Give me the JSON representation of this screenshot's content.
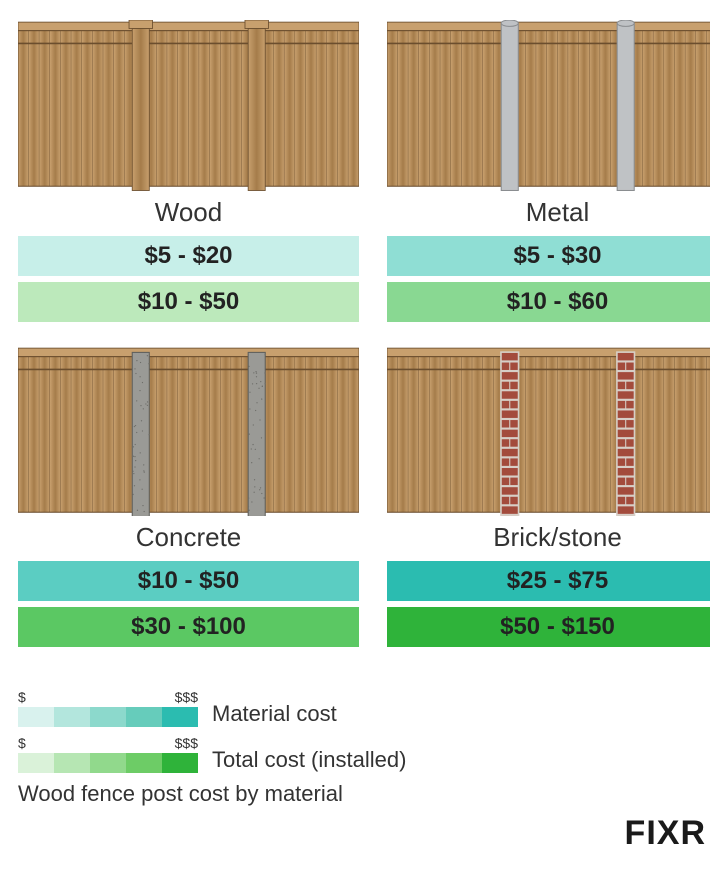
{
  "materials": [
    {
      "name": "Wood",
      "material_cost": "$5 - $20",
      "total_cost": "$10 - $50",
      "teal": "#c7efe9",
      "green": "#bce9bb",
      "post": "wood"
    },
    {
      "name": "Metal",
      "material_cost": "$5 - $30",
      "total_cost": "$10 - $60",
      "teal": "#8fded4",
      "green": "#89d892",
      "post": "metal"
    },
    {
      "name": "Concrete",
      "material_cost": "$10 - $50",
      "total_cost": "$30 - $100",
      "teal": "#5bcdc2",
      "green": "#5bc863",
      "post": "concrete"
    },
    {
      "name": "Brick/stone",
      "material_cost": "$25 - $75",
      "total_cost": "$50 - $150",
      "teal": "#2bbcb0",
      "green": "#2fb33a",
      "post": "brick"
    }
  ],
  "legend": {
    "low": "$",
    "high": "$$$",
    "material_label": "Material cost",
    "total_label": "Total cost (installed)",
    "teal_scale": [
      "#d9f2ee",
      "#b3e6dd",
      "#8cd9cc",
      "#66ccbb",
      "#2bbcb0"
    ],
    "green_scale": [
      "#daf2d9",
      "#b6e6b3",
      "#91d98c",
      "#6dcc66",
      "#2fb33a"
    ]
  },
  "caption": "Wood fence post cost by material",
  "brand": "FIXR",
  "fence": {
    "wood_light": "#c8a06e",
    "wood_dark": "#a57c4a",
    "wood_line": "#6b4e2e",
    "metal_fill": "#bfc2c5",
    "metal_edge": "#8a8d90",
    "concrete_fill": "#9a9a96",
    "brick_fill": "#a34b3c",
    "brick_mortar": "#d7cfc7"
  }
}
